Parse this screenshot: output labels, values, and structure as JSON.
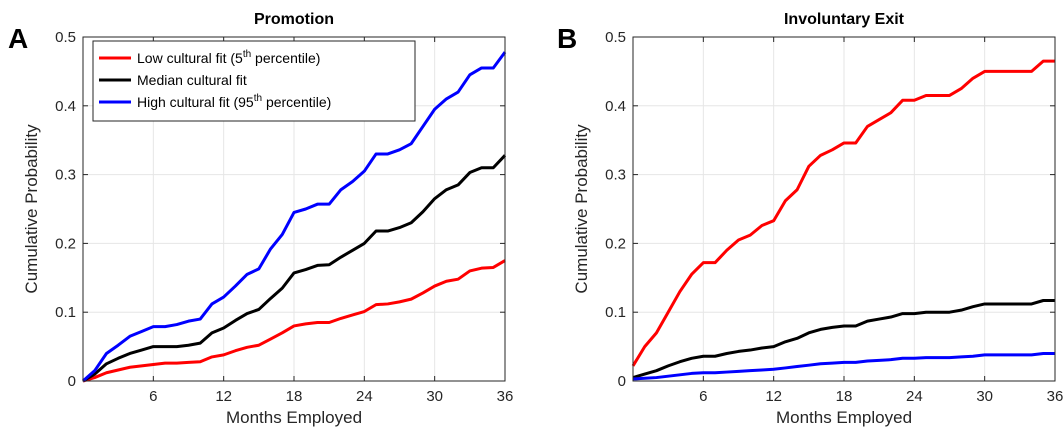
{
  "chart_data": [
    {
      "type": "line",
      "panel_letter": "A",
      "title": "Promotion",
      "xlabel": "Months Employed",
      "ylabel": "Cumulative Probability",
      "xlim": [
        0,
        36
      ],
      "ylim": [
        0,
        0.5
      ],
      "xticks": [
        6,
        12,
        18,
        24,
        30,
        36
      ],
      "yticks": [
        0,
        0.1,
        0.2,
        0.3,
        0.4,
        0.5
      ],
      "ytick_labels": [
        "0",
        "0.1",
        "0.2",
        "0.3",
        "0.4",
        "0.5"
      ],
      "grid": true,
      "legend": {
        "placement": "top-left",
        "entries": [
          {
            "prefix": "Low cultural fit (5",
            "sup": "th",
            "suffix": " percentile)",
            "color": "#ff0000"
          },
          {
            "prefix": "Median cultural fit",
            "sup": "",
            "suffix": "",
            "color": "#000000"
          },
          {
            "prefix": "High cultural fit (95",
            "sup": "th",
            "suffix": " percentile)",
            "color": "#0000ff"
          }
        ]
      },
      "x": [
        0,
        1,
        2,
        3,
        4,
        5,
        6,
        7,
        8,
        9,
        10,
        11,
        12,
        13,
        14,
        15,
        16,
        17,
        18,
        19,
        20,
        21,
        22,
        23,
        24,
        25,
        26,
        27,
        28,
        29,
        30,
        31,
        32,
        33,
        34,
        35,
        36
      ],
      "series": [
        {
          "color": "#ff0000",
          "values": [
            0,
            0.005,
            0.012,
            0.016,
            0.02,
            0.022,
            0.024,
            0.026,
            0.026,
            0.027,
            0.028,
            0.035,
            0.038,
            0.044,
            0.049,
            0.052,
            0.061,
            0.07,
            0.08,
            0.083,
            0.085,
            0.085,
            0.091,
            0.096,
            0.101,
            0.111,
            0.112,
            0.115,
            0.119,
            0.128,
            0.138,
            0.145,
            0.148,
            0.16,
            0.164,
            0.165,
            0.175
          ]
        },
        {
          "color": "#000000",
          "values": [
            0,
            0.01,
            0.025,
            0.033,
            0.04,
            0.045,
            0.05,
            0.05,
            0.05,
            0.052,
            0.055,
            0.07,
            0.077,
            0.088,
            0.098,
            0.104,
            0.12,
            0.135,
            0.157,
            0.162,
            0.168,
            0.169,
            0.18,
            0.19,
            0.2,
            0.218,
            0.218,
            0.223,
            0.23,
            0.246,
            0.265,
            0.278,
            0.285,
            0.303,
            0.31,
            0.31,
            0.328
          ]
        },
        {
          "color": "#0000ff",
          "values": [
            0,
            0.015,
            0.04,
            0.052,
            0.065,
            0.072,
            0.079,
            0.079,
            0.082,
            0.087,
            0.09,
            0.112,
            0.122,
            0.138,
            0.155,
            0.163,
            0.192,
            0.213,
            0.245,
            0.25,
            0.257,
            0.257,
            0.278,
            0.29,
            0.305,
            0.33,
            0.33,
            0.336,
            0.345,
            0.37,
            0.395,
            0.41,
            0.42,
            0.445,
            0.455,
            0.455,
            0.478
          ]
        }
      ]
    },
    {
      "type": "line",
      "panel_letter": "B",
      "title": "Involuntary Exit",
      "xlabel": "Months Employed",
      "ylabel": "Cumulative Probability",
      "xlim": [
        0,
        36
      ],
      "ylim": [
        0,
        0.5
      ],
      "xticks": [
        6,
        12,
        18,
        24,
        30,
        36
      ],
      "yticks": [
        0,
        0.1,
        0.2,
        0.3,
        0.4,
        0.5
      ],
      "ytick_labels": [
        "0",
        "0.1",
        "0.2",
        "0.3",
        "0.4",
        "0.5"
      ],
      "grid": true,
      "x": [
        0,
        1,
        2,
        3,
        4,
        5,
        6,
        7,
        8,
        9,
        10,
        11,
        12,
        13,
        14,
        15,
        16,
        17,
        18,
        19,
        20,
        21,
        22,
        23,
        24,
        25,
        26,
        27,
        28,
        29,
        30,
        31,
        32,
        33,
        34,
        35,
        36
      ],
      "series": [
        {
          "color": "#ff0000",
          "values": [
            0.022,
            0.05,
            0.07,
            0.1,
            0.13,
            0.155,
            0.172,
            0.172,
            0.19,
            0.205,
            0.212,
            0.226,
            0.233,
            0.262,
            0.278,
            0.312,
            0.328,
            0.336,
            0.346,
            0.346,
            0.37,
            0.38,
            0.39,
            0.408,
            0.408,
            0.415,
            0.415,
            0.415,
            0.425,
            0.44,
            0.45,
            0.45,
            0.45,
            0.45,
            0.45,
            0.465,
            0.465
          ]
        },
        {
          "color": "#000000",
          "values": [
            0.005,
            0.01,
            0.015,
            0.022,
            0.028,
            0.033,
            0.036,
            0.036,
            0.04,
            0.043,
            0.045,
            0.048,
            0.05,
            0.057,
            0.062,
            0.07,
            0.075,
            0.078,
            0.08,
            0.08,
            0.087,
            0.09,
            0.093,
            0.098,
            0.098,
            0.1,
            0.1,
            0.1,
            0.103,
            0.108,
            0.112,
            0.112,
            0.112,
            0.112,
            0.112,
            0.117,
            0.117
          ]
        },
        {
          "color": "#0000ff",
          "values": [
            0.003,
            0.004,
            0.005,
            0.007,
            0.009,
            0.011,
            0.012,
            0.012,
            0.013,
            0.014,
            0.015,
            0.016,
            0.017,
            0.019,
            0.021,
            0.023,
            0.025,
            0.026,
            0.027,
            0.027,
            0.029,
            0.03,
            0.031,
            0.033,
            0.033,
            0.034,
            0.034,
            0.034,
            0.035,
            0.036,
            0.038,
            0.038,
            0.038,
            0.038,
            0.038,
            0.04,
            0.04
          ]
        }
      ]
    }
  ]
}
